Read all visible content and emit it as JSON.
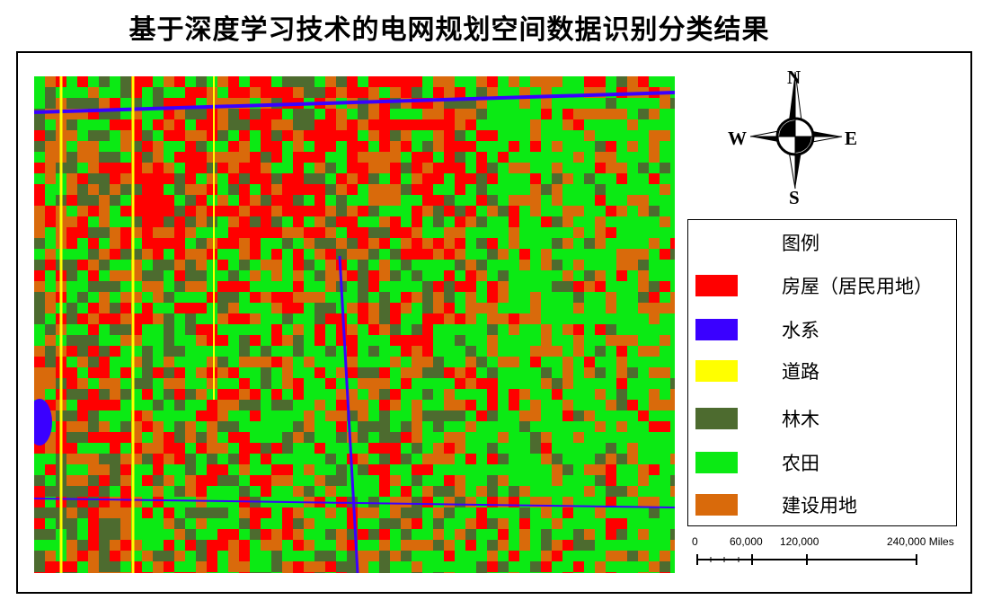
{
  "title": "基于深度学习技术的电网规划空间数据识别分类结果",
  "compass": {
    "n": "N",
    "s": "S",
    "e": "E",
    "w": "W"
  },
  "legend": {
    "title": "图例",
    "items": [
      {
        "label": "房屋（居民用地）",
        "color": "#ff0000"
      },
      {
        "label": "水系",
        "color": "#3a00ff"
      },
      {
        "label": "道路",
        "color": "#ffff00"
      },
      {
        "label": "林木",
        "color": "#4d6b2f"
      },
      {
        "label": "农田",
        "color": "#0bea14"
      },
      {
        "label": "建设用地",
        "color": "#d96a0b"
      }
    ]
  },
  "scalebar": {
    "labels": [
      "0",
      "60,000",
      "120,000",
      "240,000 Miles"
    ]
  }
}
